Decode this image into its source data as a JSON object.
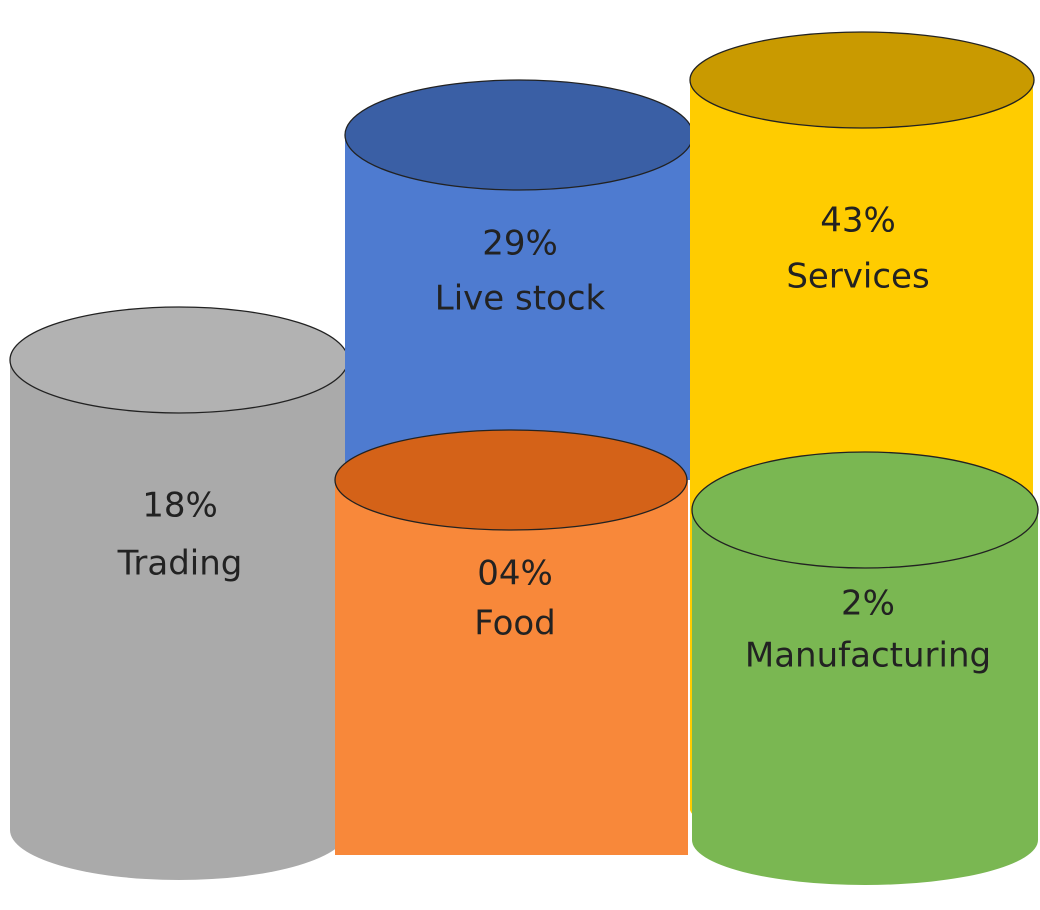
{
  "nodes": [
    {
      "percent": "18%",
      "label": "Trading"
    },
    {
      "percent": "29%",
      "label": "Live stock"
    },
    {
      "percent": "43%",
      "label": "Services"
    },
    {
      "percent": "04%",
      "label": "Food"
    },
    {
      "percent": "2%",
      "label": "Manufacturing"
    }
  ]
}
